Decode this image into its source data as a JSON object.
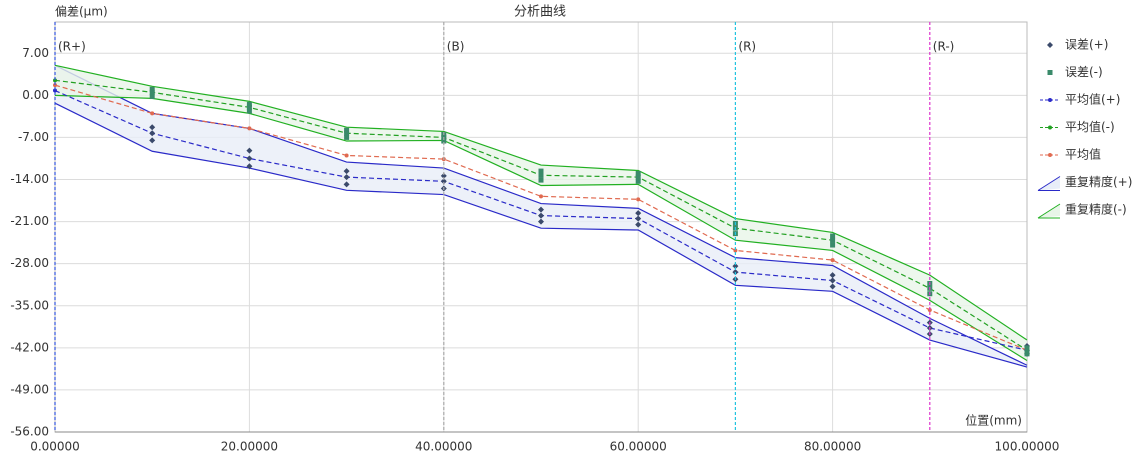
{
  "chart_data": {
    "type": "line",
    "title": "分析曲线",
    "y_label": "偏差(µm)",
    "x_label": "位置(mm)",
    "x": [
      0,
      10,
      20,
      30,
      40,
      50,
      60,
      70,
      80,
      90,
      100
    ],
    "xlim": [
      0,
      100
    ],
    "xticks": [
      {
        "value": 0,
        "label": "0.00000"
      },
      {
        "value": 20,
        "label": "20.00000"
      },
      {
        "value": 40,
        "label": "40.00000"
      },
      {
        "value": 60,
        "label": "60.00000"
      },
      {
        "value": 80,
        "label": "80.00000"
      },
      {
        "value": 100,
        "label": "100.00000"
      }
    ],
    "ylim": [
      -56,
      12.2
    ],
    "yticks": [
      {
        "value": 7,
        "label": "7.00"
      },
      {
        "value": 0,
        "label": "0.00"
      },
      {
        "value": -7,
        "label": "-7.00"
      },
      {
        "value": -14,
        "label": "-14.00"
      },
      {
        "value": -21,
        "label": "-21.00"
      },
      {
        "value": -28,
        "label": "-28.00"
      },
      {
        "value": -35,
        "label": "-35.00"
      },
      {
        "value": -42,
        "label": "-42.00"
      },
      {
        "value": -49,
        "label": "-49.00"
      },
      {
        "value": -56,
        "label": "-56.00"
      }
    ],
    "grid": true,
    "legend": "right",
    "ref_lines": [
      {
        "x": 0,
        "label": "(R+)",
        "color": "#3355dd"
      },
      {
        "x": 40,
        "label": "(B)",
        "color": "#aaaaaa"
      },
      {
        "x": 70,
        "label": "(R)",
        "color": "#22c4e0"
      },
      {
        "x": 90,
        "label": "(R-)",
        "color": "#dd33cc"
      }
    ],
    "series": [
      {
        "name": "误差(+)",
        "kind": "scatter",
        "color": "#3b4a6b",
        "x": [
          10,
          10,
          10,
          20,
          20,
          20,
          30,
          30,
          30,
          40,
          40,
          40,
          50,
          50,
          50,
          60,
          60,
          60,
          70,
          70,
          70,
          80,
          80,
          80,
          90,
          90,
          90,
          100,
          100,
          100
        ],
        "values": [
          -5.3,
          -6.3,
          -7.5,
          -9.2,
          -10.5,
          -11.8,
          -12.6,
          -13.6,
          -14.8,
          -13.4,
          -14.3,
          -15.5,
          -19,
          -20,
          -21,
          -19.6,
          -20.5,
          -21.5,
          -28.4,
          -29.4,
          -30.6,
          -29.9,
          -30.8,
          -31.8,
          -37.8,
          -38.7,
          -39.7,
          -41.7,
          -42.4,
          -43
        ]
      },
      {
        "name": "误差(-)",
        "kind": "scatter",
        "color": "#3a8a6a",
        "x": [
          10,
          10,
          10,
          20,
          20,
          20,
          30,
          30,
          30,
          40,
          40,
          40,
          50,
          50,
          50,
          60,
          60,
          60,
          70,
          70,
          70,
          80,
          80,
          80,
          90,
          90,
          90,
          100,
          100,
          100
        ],
        "values": [
          1,
          0.5,
          -0.2,
          -1.5,
          -2,
          -2.6,
          -5.8,
          -6.3,
          -7,
          -6.5,
          -7,
          -7.6,
          -12.6,
          -13.3,
          -14.1,
          -13,
          -13.6,
          -14.3,
          -21.3,
          -22.1,
          -23,
          -23.4,
          -24.1,
          -24.9,
          -31.3,
          -32.1,
          -33,
          -42,
          -42.4,
          -43
        ]
      },
      {
        "name": "平均值(+)",
        "kind": "line",
        "color": "#2a2ac8",
        "values": [
          0.8,
          -6.3,
          -10.5,
          -13.6,
          -14.3,
          -20,
          -20.5,
          -29.4,
          -30.8,
          -38.7,
          -42.4
        ]
      },
      {
        "name": "平均值(-)",
        "kind": "line",
        "color": "#22a022",
        "values": [
          2.5,
          0.5,
          -2,
          -6.3,
          -7,
          -13.3,
          -13.6,
          -22.1,
          -24.1,
          -32.1,
          -42.4
        ]
      },
      {
        "name": "平均值",
        "kind": "line",
        "color": "#e06a50",
        "values": [
          1.7,
          -3,
          -5.5,
          -10,
          -10.6,
          -16.8,
          -17.3,
          -25.8,
          -27.4,
          -35.7,
          -42.4
        ]
      },
      {
        "name": "重复精度(+)",
        "kind": "band",
        "color": "#2a2ac8",
        "fill": "#e8eef8",
        "upper": [
          5,
          -3,
          -5.5,
          -11.1,
          -12.1,
          -18,
          -18.8,
          -27,
          -28.3,
          -37.1,
          -44.9
        ],
        "lower": [
          -1.3,
          -9.3,
          -12.1,
          -15.8,
          -16.5,
          -22.1,
          -22.4,
          -31.6,
          -32.6,
          -40.7,
          -45.2
        ]
      },
      {
        "name": "重复精度(-)",
        "kind": "band",
        "color": "#22b022",
        "fill": "#e8f5e8",
        "upper": [
          5,
          1.5,
          -1,
          -5.3,
          -6,
          -11.6,
          -12.5,
          -20.5,
          -22.8,
          -29.9,
          -40.7
        ],
        "lower": [
          0,
          -0.5,
          -3,
          -7.6,
          -7.5,
          -15,
          -14.8,
          -24.1,
          -25.8,
          -34.1,
          -44.1
        ]
      }
    ]
  }
}
